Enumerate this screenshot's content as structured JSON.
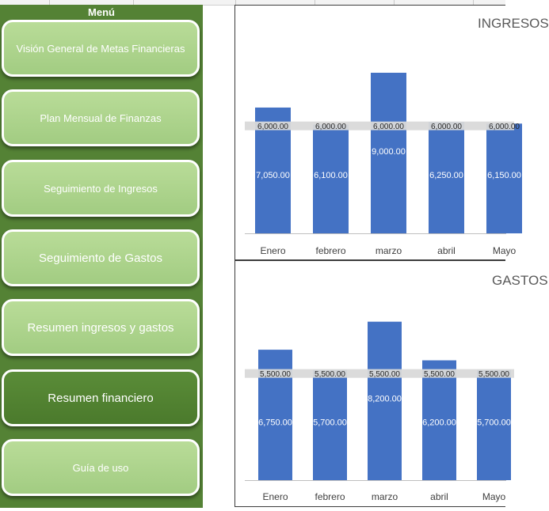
{
  "menu": {
    "title": "Menú",
    "items": [
      {
        "label": "Visión General de Metas Financieras",
        "active": false
      },
      {
        "label": "Plan Mensual de Finanzas",
        "active": false
      },
      {
        "label": "Seguimiento de Ingresos",
        "active": false
      },
      {
        "label": "Seguimiento de Gastos",
        "active": false
      },
      {
        "label": "Resumen ingresos y gastos",
        "active": false
      },
      {
        "label": "Resumen financiero",
        "active": true
      },
      {
        "label": "Guía de uso",
        "active": false
      }
    ]
  },
  "colors": {
    "bar": "#4472c4",
    "target_band": "#d9d9d9",
    "menu_bg": "#548235",
    "button_light": "#a9d18e",
    "button_active": "#507e32"
  },
  "chart_data": [
    {
      "type": "bar",
      "title": "INGRESOS",
      "categories": [
        "Enero",
        "febrero",
        "marzo",
        "abril",
        "Mayo"
      ],
      "series": [
        {
          "values": [
            7050,
            6100,
            9000,
            6250,
            6150
          ],
          "value_labels": [
            "7,050.00",
            "6,100.00",
            "9,000.00",
            "6,250.00",
            "6,150.00"
          ]
        },
        {
          "values": [
            6000,
            6000,
            6000,
            6000,
            6000
          ],
          "value_labels": [
            "6,000.00",
            "6,000.00",
            "6,000.00",
            "6,000.00",
            "6,000.00"
          ]
        }
      ],
      "ylim": [
        0,
        10000
      ],
      "legend": "none",
      "grid": false
    },
    {
      "type": "bar",
      "title": "GASTOS",
      "categories": [
        "Enero",
        "febrero",
        "marzo",
        "abril",
        "Mayo"
      ],
      "series": [
        {
          "values": [
            6750,
            5700,
            8200,
            6200,
            5700
          ],
          "value_labels": [
            "6,750.00",
            "5,700.00",
            "8,200.00",
            "6,200.00",
            "5,700.00"
          ]
        },
        {
          "values": [
            5500,
            5500,
            5500,
            5500,
            5500
          ],
          "value_labels": [
            "5,500.00",
            "5,500.00",
            "5,500.00",
            "5,500.00",
            "5,500.00"
          ]
        }
      ],
      "ylim": [
        0,
        10000
      ],
      "legend": "none",
      "grid": false
    }
  ]
}
